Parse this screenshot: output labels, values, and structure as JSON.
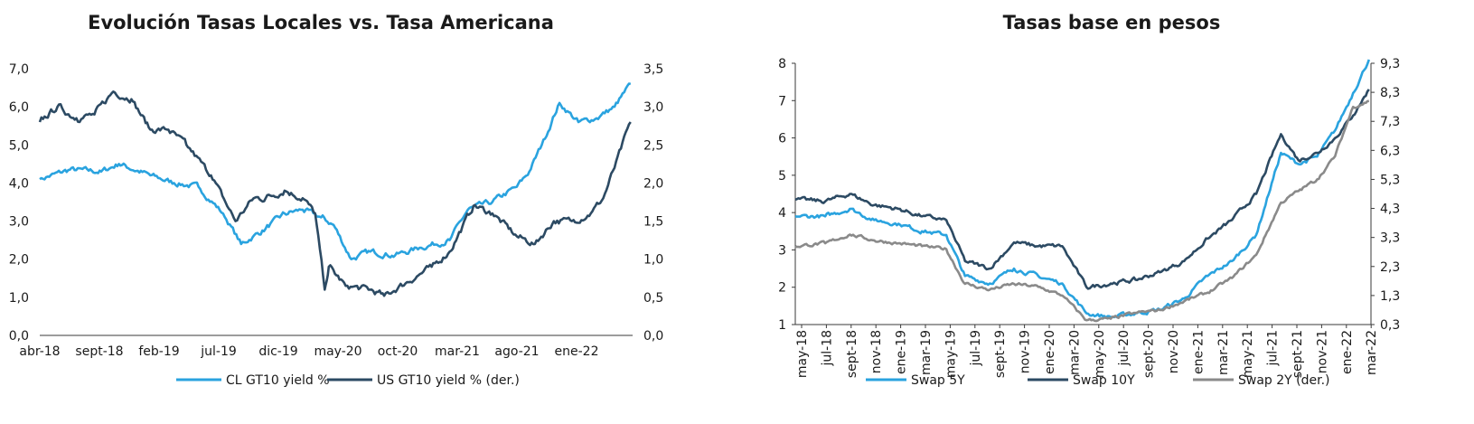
{
  "colors": {
    "light_blue": "#2aa3df",
    "dark_navy": "#2c4a63",
    "gray": "#8a8a8a"
  },
  "chart_data": [
    {
      "type": "line",
      "title": "Evolución Tasas Locales vs. Tasa Americana",
      "xlabel": "",
      "ylabel": "",
      "x_tick_labels": [
        "abr-18",
        "sept-18",
        "feb-19",
        "jul-19",
        "dic-19",
        "may-20",
        "oct-20",
        "mar-21",
        "ago-21",
        "ene-22"
      ],
      "x_range": [
        "2018-04-01",
        "2022-04-15"
      ],
      "y_left": {
        "lim": [
          0,
          7
        ],
        "ticks": [
          "0,0",
          "1,0",
          "2,0",
          "3,0",
          "4,0",
          "5,0",
          "6,0",
          "7,0"
        ]
      },
      "y_right": {
        "lim": [
          0,
          3.5
        ],
        "ticks": [
          "0,0",
          "0,5",
          "1,0",
          "1,5",
          "2,0",
          "2,5",
          "3,0",
          "3,5"
        ]
      },
      "legend_position": "bottom",
      "series": [
        {
          "name": "CL GT10 yield %",
          "axis": "left",
          "color": "#2aa3df",
          "x": [
            "2018-04-01",
            "2018-06-15",
            "2018-09-01",
            "2018-10-15",
            "2019-01-01",
            "2019-03-01",
            "2019-05-01",
            "2019-07-01",
            "2019-08-15",
            "2019-10-15",
            "2019-12-01",
            "2020-01-15",
            "2020-03-01",
            "2020-04-01",
            "2020-05-15",
            "2020-07-01",
            "2020-09-01",
            "2020-11-01",
            "2021-01-15",
            "2021-03-01",
            "2021-05-01",
            "2021-07-01",
            "2021-08-01",
            "2021-09-01",
            "2021-10-15",
            "2021-12-01",
            "2022-01-15",
            "2022-03-01",
            "2022-04-10"
          ],
          "values": [
            4.1,
            4.35,
            4.3,
            4.5,
            4.2,
            4.0,
            3.9,
            3.2,
            2.4,
            2.8,
            3.2,
            3.3,
            3.1,
            2.9,
            2.0,
            2.2,
            2.1,
            2.3,
            2.5,
            3.3,
            3.5,
            3.9,
            4.3,
            5.0,
            6.1,
            5.6,
            5.7,
            6.0,
            6.6
          ]
        },
        {
          "name": "US GT10 yield % (der.)",
          "axis": "right",
          "color": "#2c4a63",
          "x": [
            "2018-04-01",
            "2018-05-15",
            "2018-07-01",
            "2018-08-15",
            "2018-10-01",
            "2018-11-15",
            "2019-01-01",
            "2019-02-15",
            "2019-04-01",
            "2019-06-01",
            "2019-08-01",
            "2019-09-15",
            "2019-10-15",
            "2019-12-01",
            "2020-01-15",
            "2020-02-15",
            "2020-03-10",
            "2020-03-20",
            "2020-05-01",
            "2020-07-01",
            "2020-08-05",
            "2020-10-01",
            "2020-12-01",
            "2021-01-15",
            "2021-03-15",
            "2021-05-01",
            "2021-07-01",
            "2021-08-15",
            "2021-10-01",
            "2021-11-15",
            "2022-01-01",
            "2022-02-01",
            "2022-03-01",
            "2022-04-10"
          ],
          "values": [
            2.8,
            3.0,
            2.85,
            2.9,
            3.2,
            3.1,
            2.7,
            2.7,
            2.5,
            2.1,
            1.5,
            1.8,
            1.8,
            1.9,
            1.8,
            1.6,
            0.6,
            0.9,
            0.65,
            0.6,
            0.52,
            0.7,
            0.9,
            1.1,
            1.7,
            1.6,
            1.3,
            1.2,
            1.5,
            1.5,
            1.6,
            1.8,
            2.2,
            2.8
          ]
        }
      ]
    },
    {
      "type": "line",
      "title": "Tasas base en pesos",
      "xlabel": "",
      "ylabel": "",
      "x_tick_labels": [
        "may-18",
        "jul-18",
        "sept-18",
        "nov-18",
        "ene-19",
        "mar-19",
        "may-19",
        "jul-19",
        "sept-19",
        "nov-19",
        "ene-20",
        "mar-20",
        "may-20",
        "jul-20",
        "sept-20",
        "nov-20",
        "ene-21",
        "mar-21",
        "may-21",
        "jul-21",
        "sept-21",
        "nov-21",
        "ene-22",
        "mar-22"
      ],
      "x_range": [
        "2018-05-01",
        "2022-04-15"
      ],
      "y_left": {
        "lim": [
          1,
          8
        ],
        "ticks": [
          "1",
          "2",
          "3",
          "4",
          "5",
          "6",
          "7",
          "8"
        ]
      },
      "y_right": {
        "lim": [
          0.3,
          9.3
        ],
        "ticks": [
          "0,3",
          "1,3",
          "2,3",
          "3,3",
          "4,3",
          "5,3",
          "6,3",
          "7,3",
          "8,3",
          "9,3"
        ]
      },
      "legend_position": "bottom",
      "series": [
        {
          "name": "Swap 5Y",
          "axis": "left",
          "color": "#2aa3df",
          "x": [
            "2018-05-01",
            "2018-07-15",
            "2018-09-15",
            "2018-11-15",
            "2019-01-15",
            "2019-03-15",
            "2019-05-15",
            "2019-07-01",
            "2019-09-01",
            "2019-11-01",
            "2020-01-01",
            "2020-03-01",
            "2020-05-01",
            "2020-07-01",
            "2020-09-01",
            "2020-11-01",
            "2021-01-01",
            "2021-03-01",
            "2021-05-01",
            "2021-07-01",
            "2021-09-01",
            "2021-10-15",
            "2021-12-01",
            "2022-01-15",
            "2022-03-01",
            "2022-04-10"
          ],
          "values": [
            3.9,
            3.9,
            4.1,
            3.8,
            3.7,
            3.5,
            3.4,
            2.3,
            2.1,
            2.5,
            2.3,
            2.1,
            1.3,
            1.2,
            1.3,
            1.4,
            1.7,
            2.3,
            2.7,
            3.4,
            5.6,
            5.3,
            5.5,
            6.2,
            7.2,
            8.1
          ]
        },
        {
          "name": "Swap 10Y",
          "axis": "left",
          "color": "#2c4a63",
          "x": [
            "2018-05-01",
            "2018-07-15",
            "2018-09-15",
            "2018-11-15",
            "2019-01-15",
            "2019-03-15",
            "2019-05-15",
            "2019-07-01",
            "2019-09-01",
            "2019-11-01",
            "2020-01-01",
            "2020-03-01",
            "2020-05-01",
            "2020-07-01",
            "2020-09-01",
            "2020-11-01",
            "2021-01-01",
            "2021-03-01",
            "2021-05-01",
            "2021-07-01",
            "2021-09-01",
            "2021-10-15",
            "2021-12-01",
            "2022-01-15",
            "2022-03-01",
            "2022-04-10"
          ],
          "values": [
            4.35,
            4.3,
            4.5,
            4.2,
            4.1,
            3.9,
            3.8,
            2.7,
            2.5,
            3.2,
            3.1,
            3.1,
            2.0,
            2.1,
            2.2,
            2.4,
            2.7,
            3.3,
            3.8,
            4.5,
            6.1,
            5.4,
            5.6,
            6.0,
            6.6,
            7.3
          ]
        },
        {
          "name": "Swap 2Y (der.)",
          "axis": "right",
          "color": "#8a8a8a",
          "x": [
            "2018-05-01",
            "2018-07-15",
            "2018-09-15",
            "2018-11-15",
            "2019-01-15",
            "2019-03-15",
            "2019-05-15",
            "2019-07-01",
            "2019-09-01",
            "2019-11-01",
            "2020-01-01",
            "2020-03-01",
            "2020-05-01",
            "2020-07-01",
            "2020-09-01",
            "2020-11-01",
            "2021-01-01",
            "2021-03-01",
            "2021-05-01",
            "2021-07-01",
            "2021-09-01",
            "2021-10-15",
            "2021-12-01",
            "2022-01-15",
            "2022-03-01",
            "2022-04-10"
          ],
          "values": [
            3.0,
            3.1,
            3.4,
            3.2,
            3.1,
            3.0,
            2.9,
            1.7,
            1.5,
            1.7,
            1.6,
            1.3,
            0.45,
            0.5,
            0.7,
            0.8,
            1.1,
            1.4,
            1.9,
            2.7,
            4.5,
            4.9,
            5.3,
            6.1,
            7.8,
            8.0
          ]
        }
      ]
    }
  ]
}
